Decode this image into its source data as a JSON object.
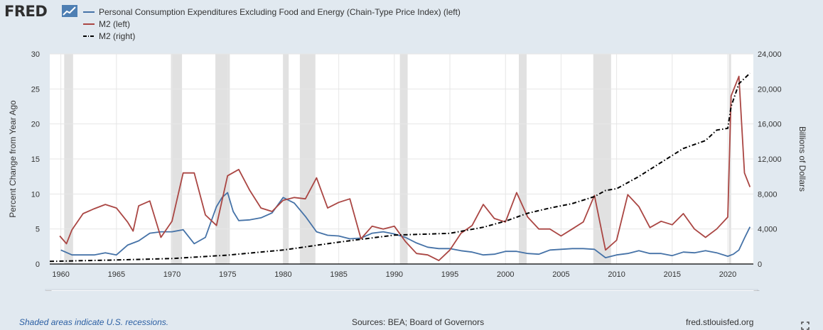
{
  "header": {
    "logo": "FRED",
    "logo_icon": "trend-chart-icon"
  },
  "legend": [
    {
      "label": "Personal Consumption Expenditures Excluding Food and Energy (Chain-Type Price Index) (left)",
      "color": "#4572a7",
      "style": "solid"
    },
    {
      "label": "M2 (left)",
      "color": "#aa4643",
      "style": "solid"
    },
    {
      "label": "M2 (right)",
      "color": "#000000",
      "style": "dash-dot"
    }
  ],
  "footer": {
    "recession_note": "Shaded areas indicate U.S. recessions.",
    "sources": "Sources: BEA; Board of Governors",
    "site": "fred.stlouisfed.org"
  },
  "colors": {
    "background": "#e1e9f0",
    "plot_background": "#ffffff",
    "recession": "#e1e1e1",
    "navigator_fill": "#9bb0d4"
  },
  "chart_data": {
    "type": "line",
    "x_axis": {
      "range": [
        1959,
        2022.3
      ],
      "ticks": [
        "1960",
        "1965",
        "1970",
        "1975",
        "1980",
        "1985",
        "1990",
        "1995",
        "2000",
        "2005",
        "2010",
        "2015",
        "2020"
      ]
    },
    "y_left": {
      "label": "Percent Change from Year Ago",
      "range": [
        0,
        30
      ],
      "ticks": [
        "0",
        "5",
        "10",
        "15",
        "20",
        "25",
        "30"
      ]
    },
    "y_right": {
      "label": "Billions of Dollars",
      "range": [
        0,
        24000
      ],
      "ticks": [
        "0",
        "4,000",
        "8,000",
        "12,000",
        "16,000",
        "20,000",
        "24,000"
      ]
    },
    "grid": true,
    "recessions": [
      [
        1960.3,
        1961.1
      ],
      [
        1969.9,
        1970.9
      ],
      [
        1973.9,
        1975.2
      ],
      [
        1980.0,
        1980.5
      ],
      [
        1981.5,
        1982.9
      ],
      [
        1990.5,
        1991.2
      ],
      [
        2001.2,
        2001.9
      ],
      [
        2007.9,
        2009.5
      ],
      [
        2020.1,
        2020.3
      ]
    ],
    "series": [
      {
        "name": "Personal Consumption Expenditures Excluding Food and Energy (Chain-Type Price Index) (left)",
        "axis": "left",
        "x": [
          1960,
          1961,
          1962,
          1963,
          1964,
          1965,
          1966,
          1967,
          1968,
          1969,
          1970,
          1971,
          1972,
          1973,
          1974,
          1974.5,
          1975,
          1975.5,
          1976,
          1977,
          1978,
          1979,
          1980,
          1981,
          1982,
          1983,
          1984,
          1985,
          1986,
          1987,
          1988,
          1989,
          1990,
          1991,
          1992,
          1993,
          1994,
          1995,
          1996,
          1997,
          1998,
          1999,
          2000,
          2001,
          2002,
          2003,
          2004,
          2005,
          2006,
          2007,
          2008,
          2009,
          2010,
          2011,
          2012,
          2013,
          2014,
          2015,
          2016,
          2017,
          2018,
          2019,
          2020,
          2020.5,
          2021,
          2021.5,
          2022
        ],
        "values": [
          2.0,
          1.3,
          1.3,
          1.3,
          1.6,
          1.3,
          2.7,
          3.3,
          4.4,
          4.6,
          4.6,
          4.9,
          2.9,
          3.8,
          8.2,
          9.5,
          10.2,
          7.5,
          6.2,
          6.3,
          6.6,
          7.3,
          9.5,
          8.7,
          6.8,
          4.6,
          4.1,
          4.0,
          3.6,
          3.7,
          4.4,
          4.6,
          4.3,
          3.8,
          3.0,
          2.4,
          2.2,
          2.2,
          1.9,
          1.7,
          1.3,
          1.4,
          1.8,
          1.8,
          1.5,
          1.4,
          2.0,
          2.1,
          2.2,
          2.2,
          2.1,
          0.9,
          1.3,
          1.5,
          1.9,
          1.5,
          1.5,
          1.2,
          1.7,
          1.6,
          1.9,
          1.6,
          1.1,
          1.4,
          2.0,
          3.7,
          5.3
        ]
      },
      {
        "name": "M2 (left)",
        "axis": "left",
        "x": [
          1959.9,
          1960.5,
          1961,
          1962,
          1963,
          1964,
          1965,
          1966,
          1966.5,
          1967,
          1968,
          1969,
          1970,
          1971,
          1972,
          1973,
          1974,
          1975,
          1976,
          1977,
          1978,
          1979,
          1980,
          1981,
          1982,
          1983,
          1984,
          1985,
          1986,
          1987,
          1988,
          1989,
          1990,
          1991,
          1992,
          1993,
          1994,
          1995,
          1996,
          1997,
          1998,
          1999,
          2000,
          2001,
          2002,
          2003,
          2004,
          2005,
          2006,
          2007,
          2008,
          2009,
          2010,
          2011,
          2012,
          2013,
          2014,
          2015,
          2016,
          2017,
          2018,
          2019,
          2020,
          2020.3,
          2021,
          2021.5,
          2022
        ],
        "values": [
          4.0,
          2.9,
          4.9,
          7.2,
          7.9,
          8.5,
          8.0,
          6.0,
          4.7,
          8.3,
          9.0,
          3.8,
          6.1,
          13.0,
          13.0,
          7.0,
          5.5,
          12.6,
          13.5,
          10.5,
          8.0,
          7.5,
          9.1,
          9.5,
          9.3,
          12.3,
          8.0,
          8.8,
          9.3,
          3.6,
          5.4,
          5.0,
          5.4,
          3.2,
          1.5,
          1.3,
          0.5,
          2.0,
          4.4,
          5.5,
          8.5,
          6.5,
          6.0,
          10.2,
          6.7,
          5.0,
          5.0,
          4.0,
          5.0,
          6.0,
          9.8,
          2.0,
          3.4,
          9.9,
          8.2,
          5.2,
          6.1,
          5.6,
          7.2,
          5.0,
          3.8,
          5.0,
          6.7,
          24.0,
          26.8,
          13.0,
          11.0
        ]
      },
      {
        "name": "M2 (right)",
        "axis": "right",
        "x": [
          1959,
          1965,
          1970,
          1975,
          1980,
          1985,
          1990,
          1995,
          1998,
          2000,
          2002,
          2004,
          2006,
          2008,
          2009,
          2010,
          2012,
          2014,
          2016,
          2018,
          2019,
          2020,
          2020.3,
          2021,
          2022
        ],
        "values": [
          297,
          460,
          627,
          1016,
          1600,
          2500,
          3300,
          3500,
          4200,
          4900,
          5800,
          6400,
          6900,
          7700,
          8400,
          8600,
          10000,
          11600,
          13200,
          14100,
          15300,
          15500,
          18000,
          20600,
          21800
        ]
      }
    ]
  }
}
